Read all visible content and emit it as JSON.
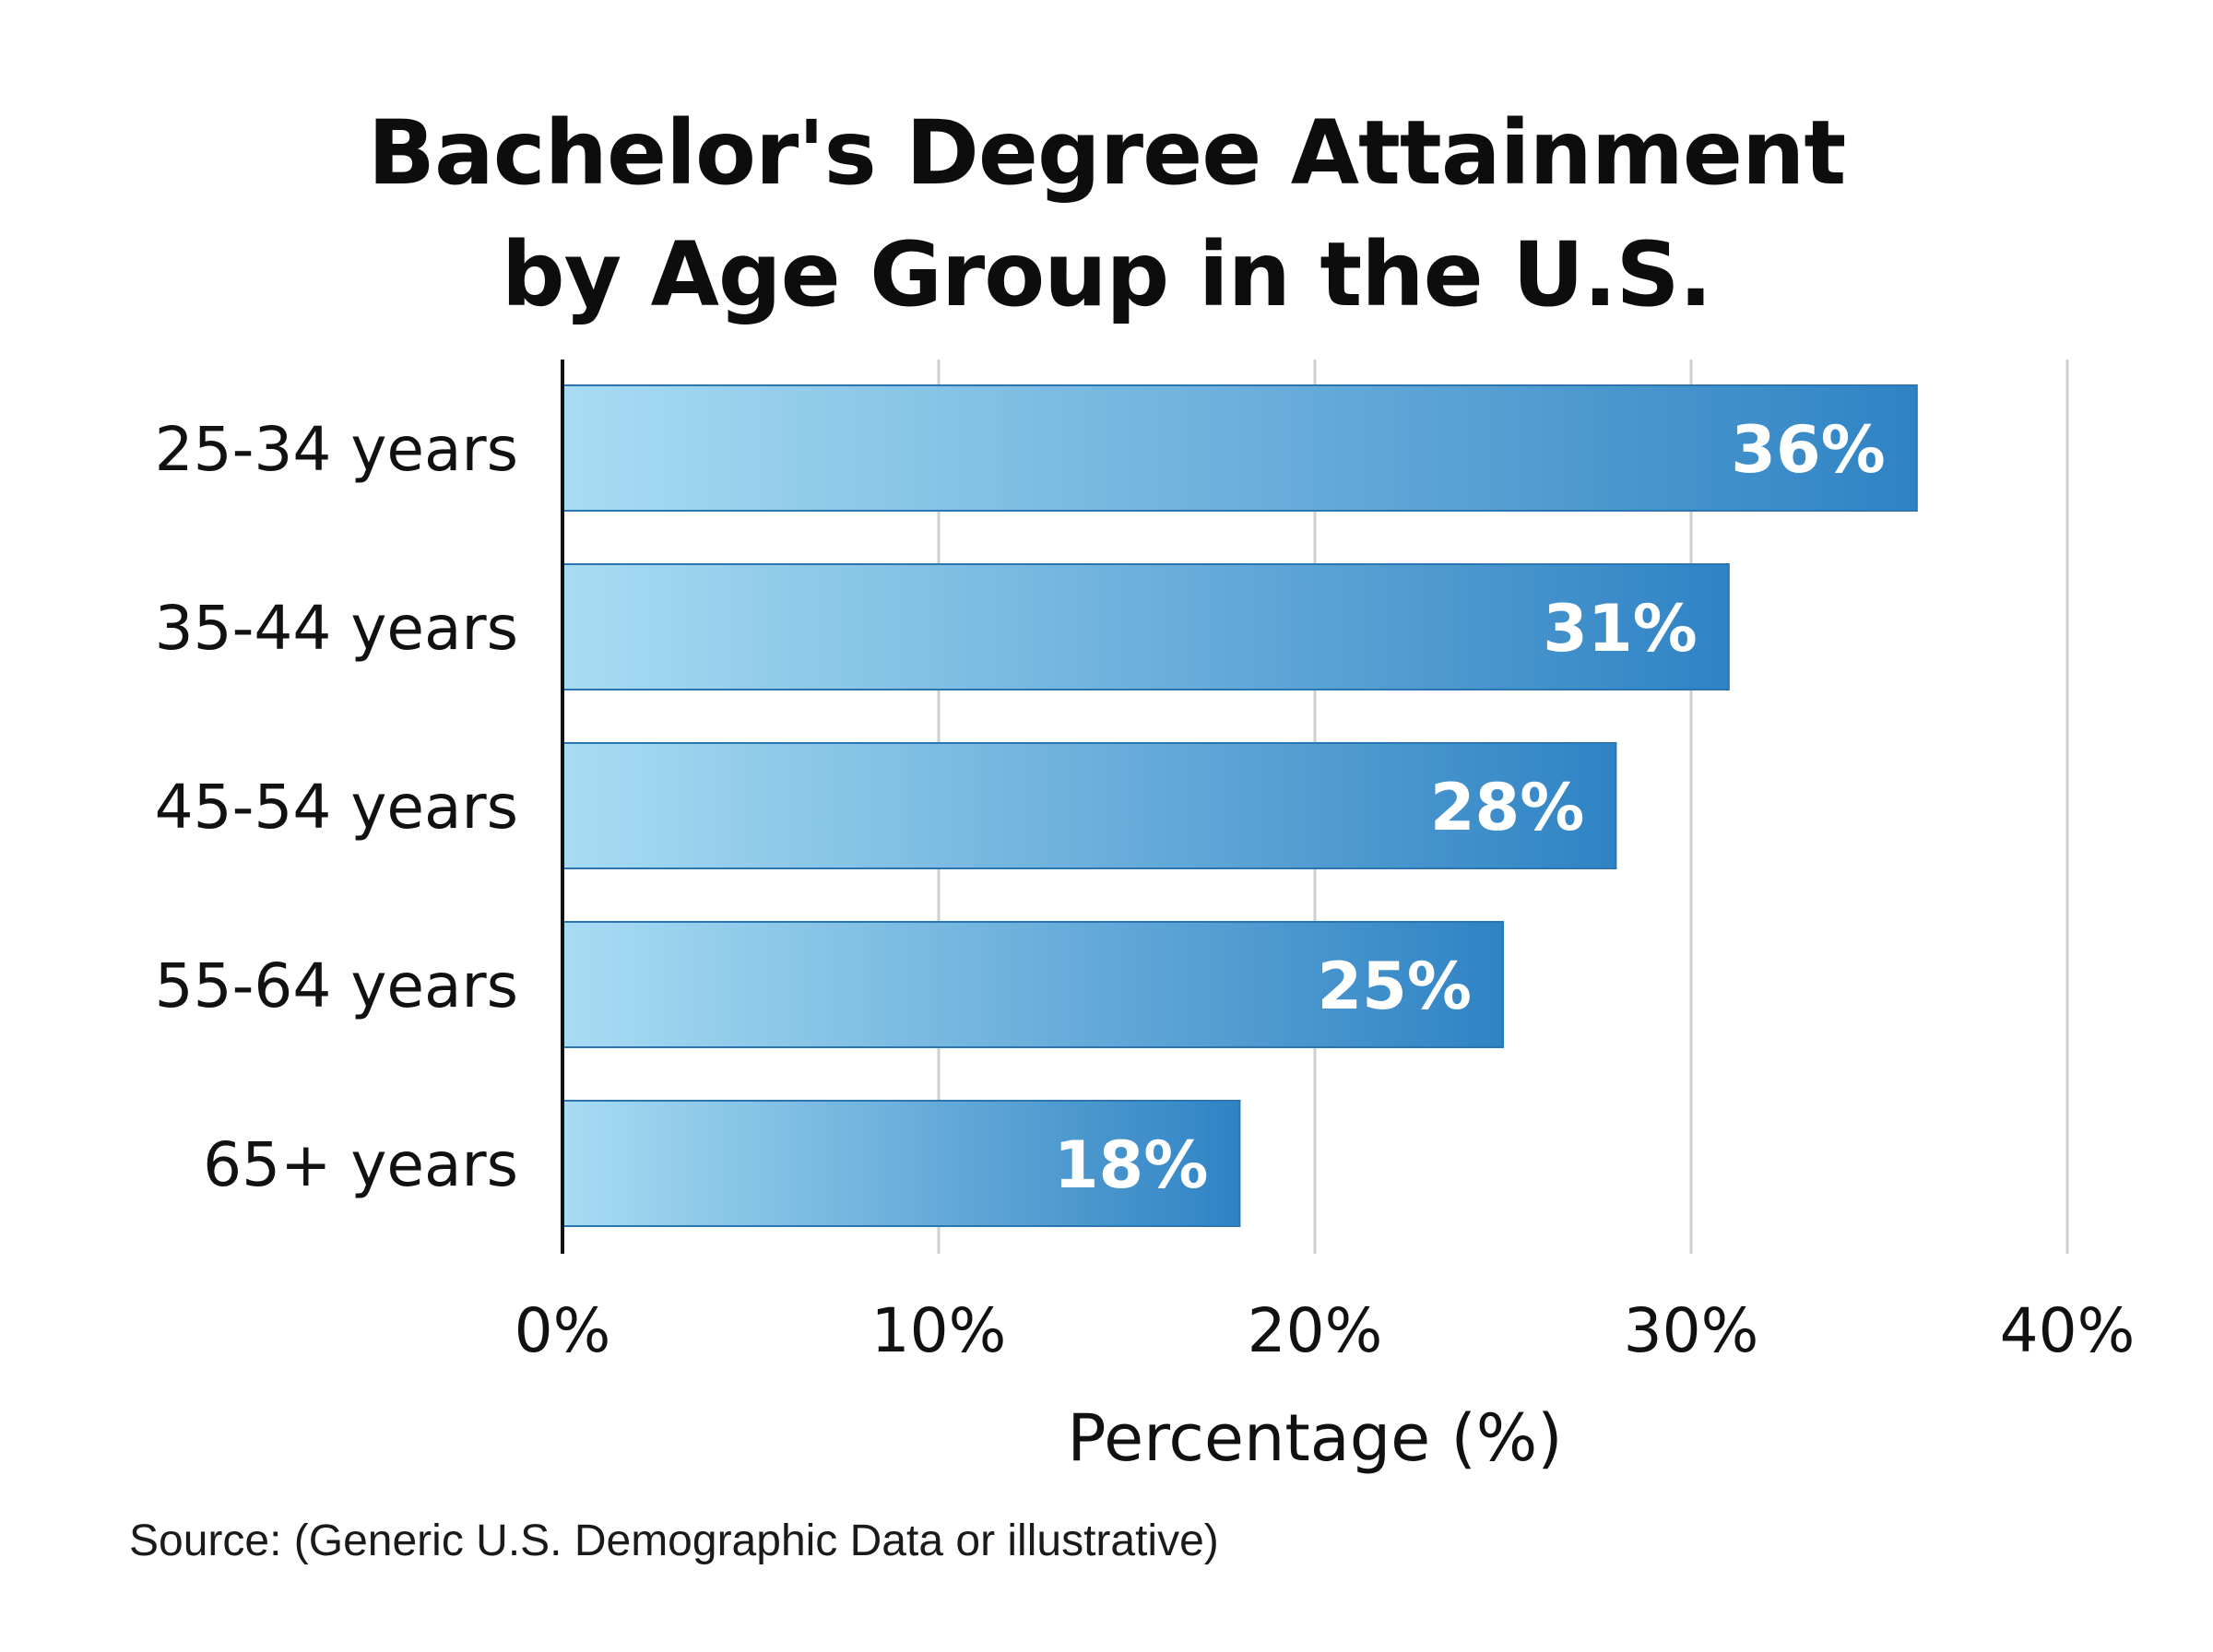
{
  "title_lines": [
    "Bachelor's Degree Attainment",
    "by Age Group in the U.S."
  ],
  "source": "Source: (Generic U.S. Demographic Data or illustrative)",
  "colors": {
    "bar_start": "#a8dcf3",
    "bar_end": "#2f83c4",
    "grid": "#cfcfcf",
    "axis": "#111111",
    "value_label": "#ffffff"
  },
  "chart_data": {
    "type": "bar",
    "orientation": "horizontal",
    "categories": [
      "25-34 years",
      "35-44 years",
      "45-54 years",
      "55-64 years",
      "65+ years"
    ],
    "values": [
      36,
      31,
      28,
      25,
      18
    ],
    "value_labels": [
      "36%",
      "31%",
      "28%",
      "25%",
      "18%"
    ],
    "xlabel": "Percentage (%)",
    "xlim": [
      0,
      40
    ],
    "xticks": [
      0,
      10,
      20,
      30,
      40
    ],
    "xtick_labels": [
      "0%",
      "10%",
      "20%",
      "30%",
      "40%"
    ],
    "grid": true
  }
}
